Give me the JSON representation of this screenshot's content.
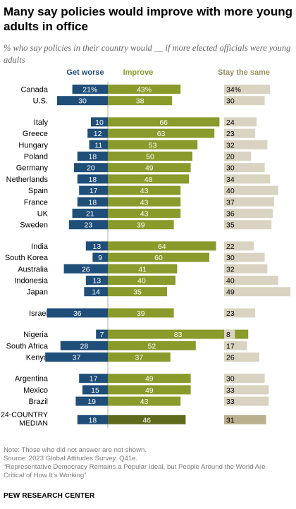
{
  "title": "Many say policies would improve with more young adults in office",
  "subtitle": "% who say policies in their country would __ if more elected officials were young adults",
  "chart_data": {
    "type": "bar",
    "series_names": [
      "Get worse",
      "Improve",
      "Stay the same"
    ],
    "colors": {
      "worse": "#1f4e79",
      "improve": "#8a9a2b",
      "same": "#d9d4c1",
      "median_improve": "#5f6a1c",
      "median_same": "#b9b08e",
      "worse_header": "#1f4e79",
      "improve_header": "#8a9a2b",
      "same_header": "#9b8f64"
    },
    "rows": [
      {
        "country": "Canada",
        "worse": "21%",
        "improve": "43%",
        "same": "34%",
        "worse_v": 21,
        "improve_v": 43,
        "same_v": 34
      },
      {
        "country": "U.S.",
        "worse": "30",
        "improve": "38",
        "same": "30",
        "worse_v": 30,
        "improve_v": 38,
        "same_v": 30
      },
      {
        "country": "Italy",
        "worse": "10",
        "improve": "66",
        "same": "24",
        "worse_v": 10,
        "improve_v": 66,
        "same_v": 24
      },
      {
        "country": "Greece",
        "worse": "12",
        "improve": "63",
        "same": "23",
        "worse_v": 12,
        "improve_v": 63,
        "same_v": 23
      },
      {
        "country": "Hungary",
        "worse": "11",
        "improve": "53",
        "same": "32",
        "worse_v": 11,
        "improve_v": 53,
        "same_v": 32
      },
      {
        "country": "Poland",
        "worse": "18",
        "improve": "50",
        "same": "20",
        "worse_v": 18,
        "improve_v": 50,
        "same_v": 20
      },
      {
        "country": "Germany",
        "worse": "20",
        "improve": "49",
        "same": "30",
        "worse_v": 20,
        "improve_v": 49,
        "same_v": 30
      },
      {
        "country": "Netherlands",
        "worse": "18",
        "improve": "48",
        "same": "34",
        "worse_v": 18,
        "improve_v": 48,
        "same_v": 34
      },
      {
        "country": "Spain",
        "worse": "17",
        "improve": "43",
        "same": "40",
        "worse_v": 17,
        "improve_v": 43,
        "same_v": 40
      },
      {
        "country": "France",
        "worse": "18",
        "improve": "43",
        "same": "37",
        "worse_v": 18,
        "improve_v": 43,
        "same_v": 37
      },
      {
        "country": "UK",
        "worse": "21",
        "improve": "43",
        "same": "36",
        "worse_v": 21,
        "improve_v": 43,
        "same_v": 36
      },
      {
        "country": "Sweden",
        "worse": "23",
        "improve": "39",
        "same": "35",
        "worse_v": 23,
        "improve_v": 39,
        "same_v": 35
      },
      {
        "country": "India",
        "worse": "13",
        "improve": "64",
        "same": "22",
        "worse_v": 13,
        "improve_v": 64,
        "same_v": 22
      },
      {
        "country": "South Korea",
        "worse": "9",
        "improve": "60",
        "same": "30",
        "worse_v": 9,
        "improve_v": 60,
        "same_v": 30
      },
      {
        "country": "Australia",
        "worse": "26",
        "improve": "41",
        "same": "32",
        "worse_v": 26,
        "improve_v": 41,
        "same_v": 32
      },
      {
        "country": "Indonesia",
        "worse": "13",
        "improve": "40",
        "same": "40",
        "worse_v": 13,
        "improve_v": 40,
        "same_v": 40
      },
      {
        "country": "Japan",
        "worse": "14",
        "improve": "35",
        "same": "49",
        "worse_v": 14,
        "improve_v": 35,
        "same_v": 49
      },
      {
        "country": "Israel",
        "worse": "36",
        "improve": "39",
        "same": "23",
        "worse_v": 36,
        "improve_v": 39,
        "same_v": 23
      },
      {
        "country": "Nigeria",
        "worse": "7",
        "improve": "83",
        "same": "8",
        "worse_v": 7,
        "improve_v": 83,
        "same_v": 8
      },
      {
        "country": "South Africa",
        "worse": "28",
        "improve": "52",
        "same": "17",
        "worse_v": 28,
        "improve_v": 52,
        "same_v": 17
      },
      {
        "country": "Kenya",
        "worse": "37",
        "improve": "37",
        "same": "26",
        "worse_v": 37,
        "improve_v": 37,
        "same_v": 26
      },
      {
        "country": "Argentina",
        "worse": "17",
        "improve": "49",
        "same": "30",
        "worse_v": 17,
        "improve_v": 49,
        "same_v": 30
      },
      {
        "country": "Mexico",
        "worse": "15",
        "improve": "49",
        "same": "33",
        "worse_v": 15,
        "improve_v": 49,
        "same_v": 33
      },
      {
        "country": "Brazil",
        "worse": "19",
        "improve": "43",
        "same": "33",
        "worse_v": 19,
        "improve_v": 43,
        "same_v": 33
      },
      {
        "country": [
          "24-COUNTRY",
          "MEDIAN"
        ],
        "worse": "18",
        "improve": "46",
        "same": "31",
        "worse_v": 18,
        "improve_v": 46,
        "same_v": 31,
        "median": true
      }
    ]
  },
  "notes": {
    "note": "Note: Those who did not answer are not shown.",
    "source": "Source: 2023 Global Attitudes Survey. Q41e.",
    "report_line1": "“Representative Democracy Remains a Popular Ideal, but People Around the World Are",
    "report_line2": "Critical of How It’s Working”"
  },
  "brand": "PEW RESEARCH CENTER"
}
